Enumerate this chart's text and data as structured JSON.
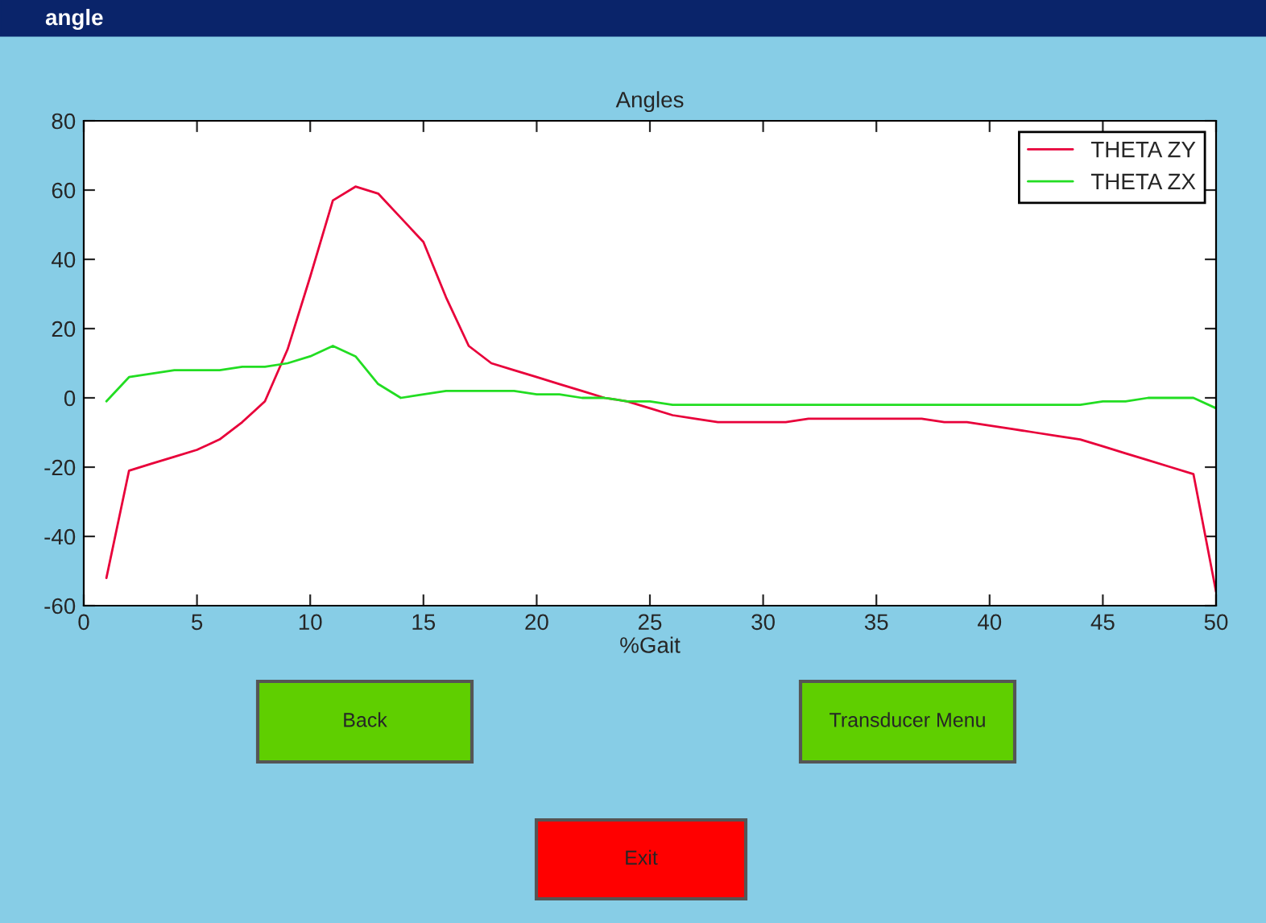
{
  "chart_data": {
    "type": "line",
    "title": "Angles",
    "xlabel": "%Gait",
    "x": [
      1,
      2,
      3,
      4,
      5,
      6,
      7,
      8,
      9,
      10,
      11,
      12,
      13,
      14,
      15,
      16,
      17,
      18,
      19,
      20,
      21,
      22,
      23,
      24,
      25,
      26,
      27,
      28,
      29,
      30,
      31,
      32,
      33,
      34,
      35,
      36,
      37,
      38,
      39,
      40,
      41,
      42,
      43,
      44,
      45,
      46,
      47,
      48,
      49,
      50
    ],
    "series": [
      {
        "name": "THETA ZY",
        "color": "#e8003a",
        "values": [
          -52,
          -21,
          -19,
          -17,
          -15,
          -12,
          -7,
          -1,
          14,
          35,
          57,
          61,
          59,
          52,
          45,
          29,
          15,
          10,
          8,
          6,
          4,
          2,
          0,
          -1,
          -3,
          -5,
          -6,
          -7,
          -7,
          -7,
          -7,
          -6,
          -6,
          -6,
          -6,
          -6,
          -6,
          -7,
          -7,
          -8,
          -9,
          -10,
          -11,
          -12,
          -14,
          -16,
          -18,
          -20,
          -22,
          -56
        ]
      },
      {
        "name": "THETA ZX",
        "color": "#22dd22",
        "values": [
          -1,
          6,
          7,
          8,
          8,
          8,
          9,
          9,
          10,
          12,
          15,
          12,
          4,
          0,
          1,
          2,
          2,
          2,
          2,
          1,
          1,
          0,
          0,
          -1,
          -1,
          -2,
          -2,
          -2,
          -2,
          -2,
          -2,
          -2,
          -2,
          -2,
          -2,
          -2,
          -2,
          -2,
          -2,
          -2,
          -2,
          -2,
          -2,
          -2,
          -1,
          -1,
          0,
          0,
          0,
          -3
        ]
      }
    ],
    "xlim": [
      0,
      50
    ],
    "xticks": [
      0,
      5,
      10,
      15,
      20,
      25,
      30,
      35,
      40,
      45,
      50
    ],
    "ylim": [
      -60,
      80
    ],
    "yticks": [
      -60,
      -40,
      -20,
      0,
      20,
      40,
      60,
      80
    ],
    "grid": false,
    "legend": "top right",
    "line_style": "solid",
    "marker": "none",
    "annotations": [
      "angle",
      "Back",
      "Transducer Menu",
      "Exit"
    ]
  }
}
